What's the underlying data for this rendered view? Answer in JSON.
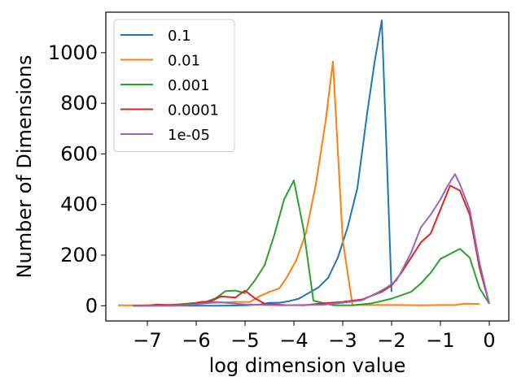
{
  "chart_data": {
    "type": "line",
    "title": "",
    "xlabel": "log dimension value",
    "ylabel": "Number of Dimensions",
    "xlim": [
      -7.85,
      0.4
    ],
    "ylim": [
      -60,
      1160
    ],
    "xticks": [
      -7,
      -6,
      -5,
      -4,
      -3,
      -2,
      -1,
      0
    ],
    "xtick_labels": [
      "−7",
      "−6",
      "−5",
      "−4",
      "−3",
      "−2",
      "−1",
      "0"
    ],
    "yticks": [
      0,
      200,
      400,
      600,
      800,
      1000
    ],
    "ytick_labels": [
      "0",
      "200",
      "400",
      "600",
      "800",
      "1000"
    ],
    "grid": false,
    "legend_position": "top-left",
    "series": [
      {
        "name": "0.1",
        "color": "#1f77b4",
        "x": [
          -7.3,
          -7.0,
          -6.5,
          -6.0,
          -5.5,
          -5.0,
          -4.7,
          -4.5,
          -4.3,
          -4.1,
          -3.9,
          -3.7,
          -3.5,
          -3.3,
          -3.1,
          -2.9,
          -2.7,
          -2.5,
          -2.35,
          -2.2,
          -2.1,
          -2.0
        ],
        "y": [
          0,
          0,
          0,
          0,
          0,
          2,
          5,
          12,
          12,
          18,
          28,
          50,
          72,
          110,
          190,
          310,
          465,
          760,
          960,
          1128,
          600,
          55
        ]
      },
      {
        "name": "0.01",
        "color": "#ff7f0e",
        "x": [
          -7.6,
          -7.2,
          -6.8,
          -6.4,
          -6.0,
          -5.6,
          -5.2,
          -4.9,
          -4.7,
          -4.5,
          -4.3,
          -4.15,
          -3.95,
          -3.75,
          -3.55,
          -3.35,
          -3.2,
          -3.0,
          -2.8,
          -2.6,
          -2.2,
          -1.9,
          -1.4,
          -1.0,
          -0.7,
          -0.5,
          -0.2
        ],
        "y": [
          2,
          2,
          3,
          4,
          8,
          12,
          15,
          15,
          38,
          55,
          68,
          110,
          180,
          290,
          480,
          730,
          965,
          260,
          3,
          3,
          3,
          3,
          2,
          3,
          3,
          8,
          7
        ]
      },
      {
        "name": "0.001",
        "color": "#2ca02c",
        "x": [
          -7.3,
          -7.0,
          -6.6,
          -6.2,
          -5.8,
          -5.6,
          -5.4,
          -5.2,
          -5.0,
          -4.8,
          -4.6,
          -4.4,
          -4.2,
          -4.0,
          -3.8,
          -3.6,
          -3.2,
          -2.8,
          -2.4,
          -2.0,
          -1.6,
          -1.4,
          -1.2,
          -1.0,
          -0.8,
          -0.6,
          -0.4,
          -0.2,
          0.0
        ],
        "y": [
          0,
          0,
          2,
          8,
          15,
          30,
          58,
          60,
          50,
          100,
          160,
          280,
          420,
          495,
          300,
          20,
          2,
          2,
          10,
          28,
          55,
          88,
          130,
          185,
          205,
          225,
          190,
          70,
          8
        ]
      },
      {
        "name": "0.0001",
        "color": "#d62728",
        "x": [
          -7.3,
          -7.0,
          -6.8,
          -6.6,
          -6.2,
          -5.9,
          -5.7,
          -5.5,
          -5.2,
          -5.0,
          -4.8,
          -4.6,
          -4.2,
          -3.8,
          -3.4,
          -3.0,
          -2.6,
          -2.2,
          -2.0,
          -1.8,
          -1.6,
          -1.4,
          -1.2,
          -1.0,
          -0.8,
          -0.6,
          -0.4,
          -0.2,
          0.0
        ],
        "y": [
          0,
          0,
          5,
          3,
          3,
          15,
          17,
          37,
          32,
          60,
          30,
          8,
          3,
          2,
          10,
          15,
          25,
          55,
          80,
          130,
          190,
          250,
          285,
          380,
          475,
          455,
          360,
          150,
          8
        ]
      },
      {
        "name": "1e-05",
        "color": "#9467bd",
        "x": [
          -7.3,
          -7.0,
          -6.6,
          -6.2,
          -5.8,
          -5.6,
          -5.4,
          -5.0,
          -4.6,
          -4.2,
          -3.8,
          -3.4,
          -3.0,
          -2.6,
          -2.3,
          -2.1,
          -1.9,
          -1.8,
          -1.6,
          -1.4,
          -1.2,
          -1.0,
          -0.85,
          -0.7,
          -0.6,
          -0.4,
          -0.2,
          0.0
        ],
        "y": [
          0,
          0,
          0,
          2,
          10,
          15,
          12,
          5,
          3,
          2,
          3,
          4,
          12,
          22,
          50,
          72,
          100,
          135,
          210,
          310,
          360,
          420,
          475,
          520,
          480,
          380,
          170,
          8
        ]
      }
    ]
  }
}
